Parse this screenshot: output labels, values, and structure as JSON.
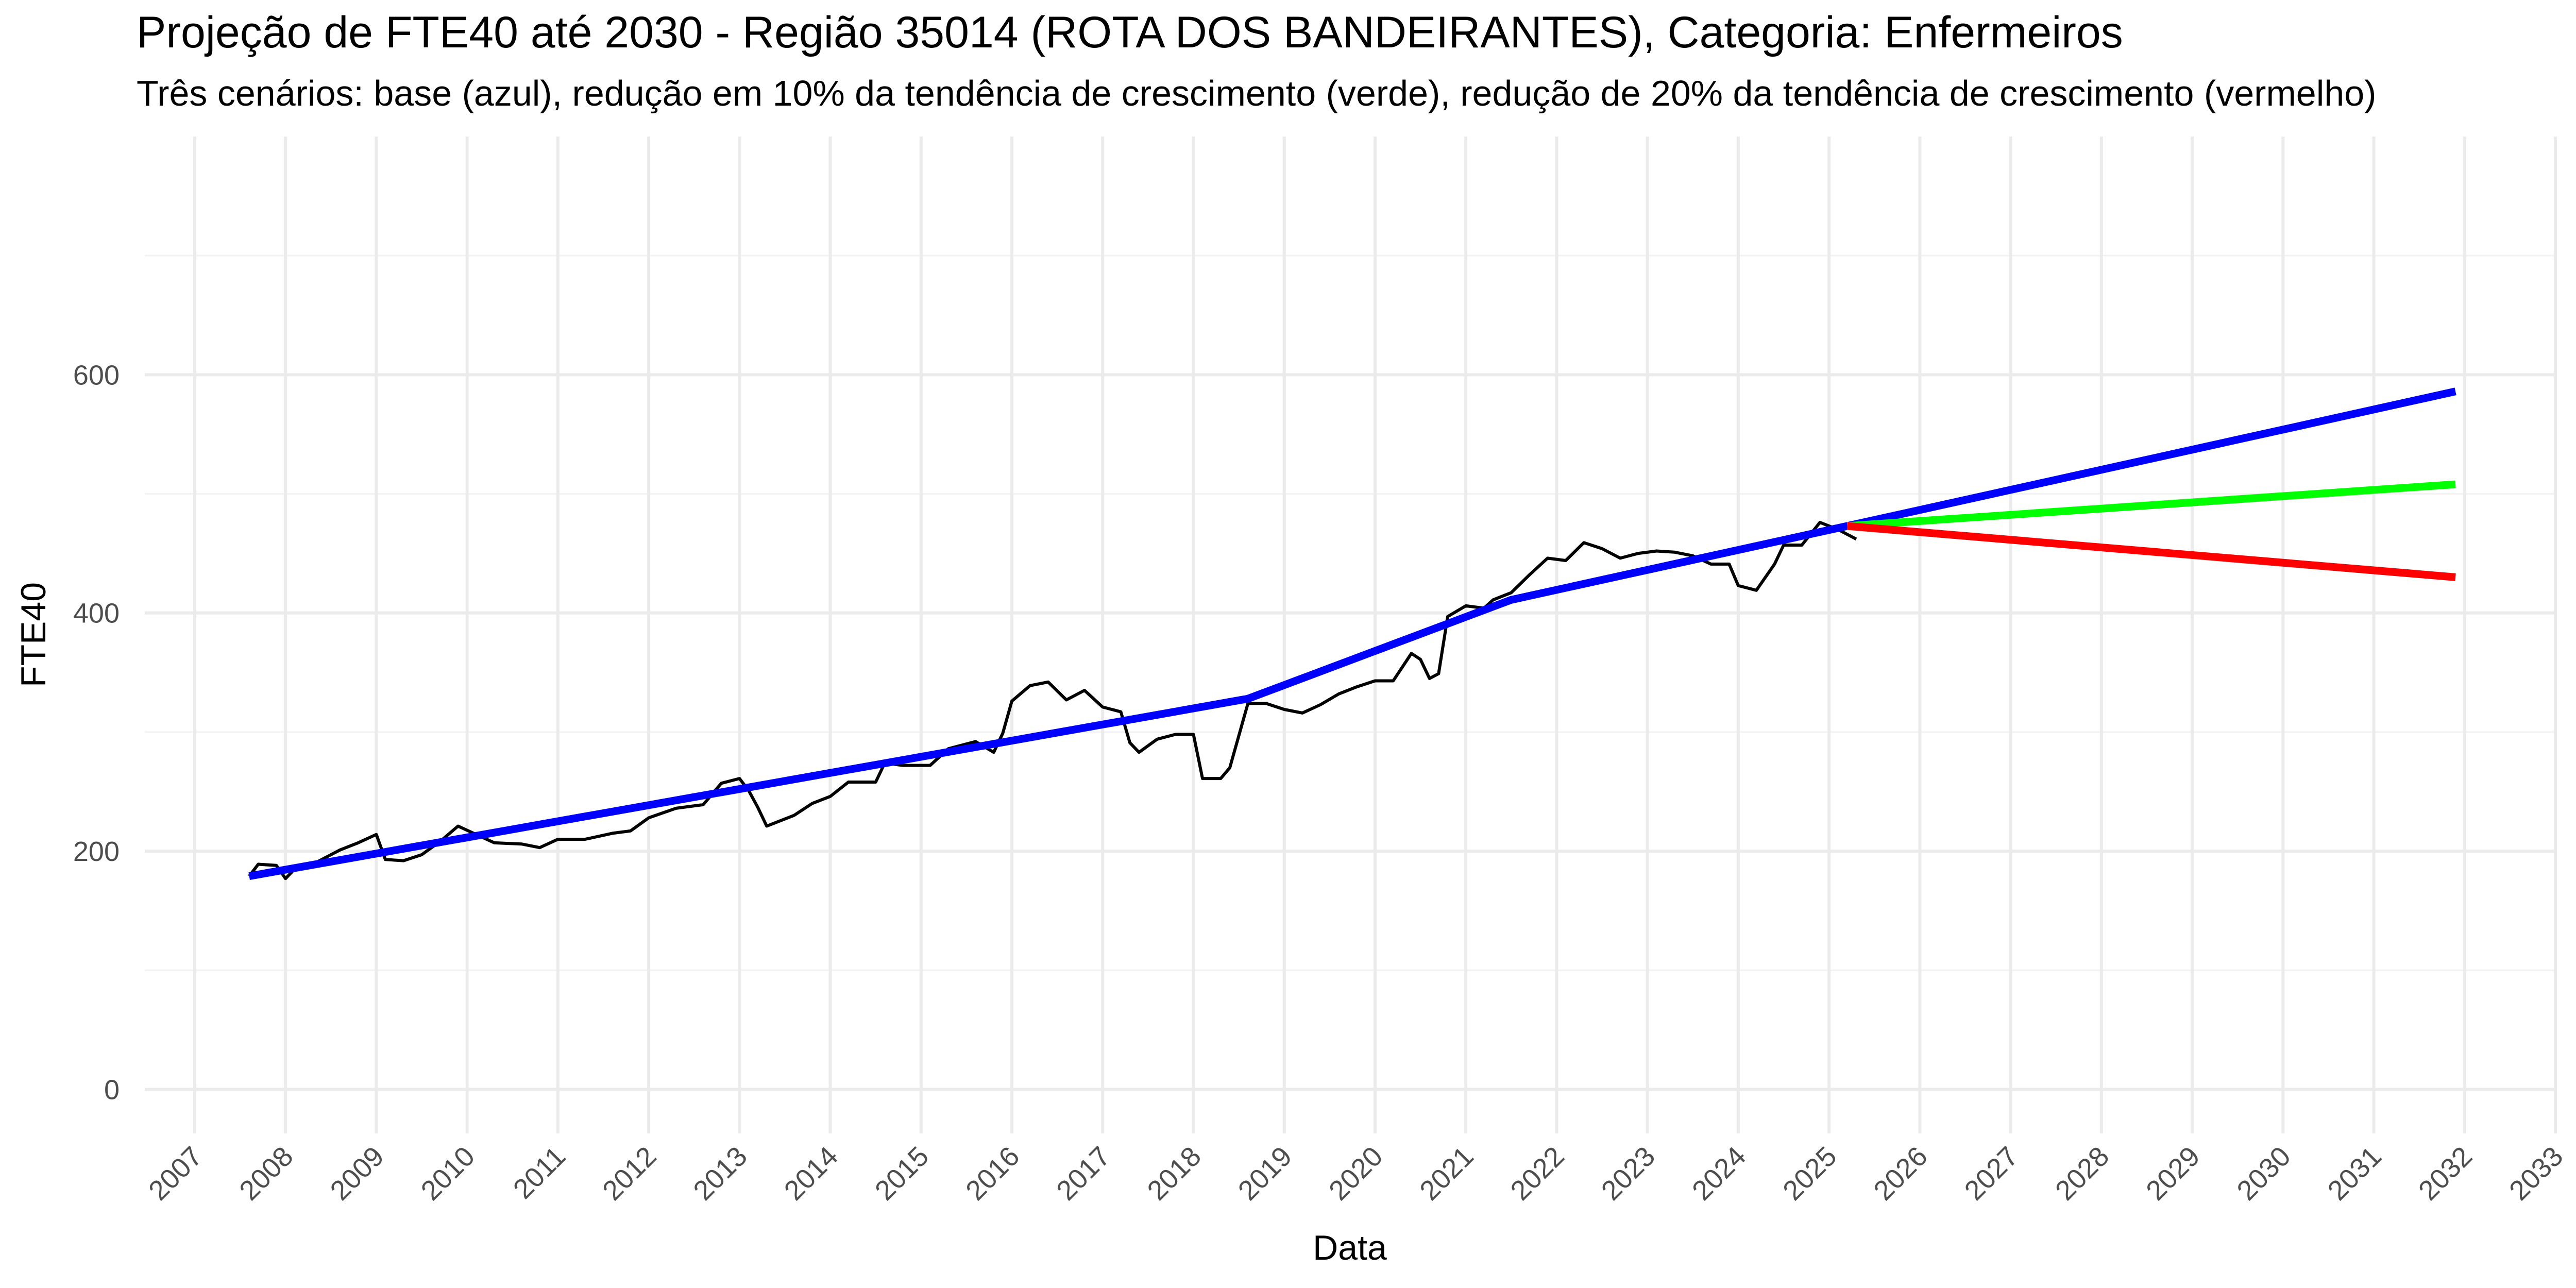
{
  "chart_data": {
    "type": "line",
    "title": "Projeção de FTE40 até 2030 - Região 35014 (ROTA DOS BANDEIRANTES), Categoria: Enfermeiros",
    "subtitle": "Três cenários: base (azul), redução em 10% da tendência de crescimento (verde), redução de 20% da tendência de crescimento (vermelho)",
    "xlabel": "Data",
    "ylabel": "FTE40",
    "xlim": [
      2006.45,
      2033.0
    ],
    "ylim": [
      -37,
      800
    ],
    "xticks": [
      2007,
      2008,
      2009,
      2010,
      2011,
      2012,
      2013,
      2014,
      2015,
      2016,
      2017,
      2018,
      2019,
      2020,
      2021,
      2022,
      2023,
      2024,
      2025,
      2026,
      2027,
      2028,
      2029,
      2030,
      2031,
      2032,
      2033
    ],
    "yticks": [
      0,
      200,
      400,
      600
    ],
    "yminor": [
      100,
      300,
      500,
      700
    ],
    "grid": true,
    "series": [
      {
        "color": "#000000",
        "width": 6,
        "x": [
          2007.6,
          2007.7,
          2007.9,
          2008.0,
          2008.1,
          2008.3,
          2008.5,
          2008.6,
          2008.8,
          2009.0,
          2009.1,
          2009.3,
          2009.5,
          2009.7,
          2009.9,
          2010.1,
          2010.3,
          2010.6,
          2010.8,
          2011.0,
          2011.3,
          2011.6,
          2011.8,
          2012.0,
          2012.3,
          2012.6,
          2012.8,
          2013.0,
          2013.1,
          2013.2,
          2013.3,
          2013.6,
          2013.8,
          2014.0,
          2014.2,
          2014.5,
          2014.6,
          2014.8,
          2015.1,
          2015.3,
          2015.6,
          2015.8,
          2015.9,
          2016.0,
          2016.2,
          2016.4,
          2016.6,
          2016.8,
          2017.0,
          2017.2,
          2017.3,
          2017.4,
          2017.6,
          2017.8,
          2018.0,
          2018.1,
          2018.3,
          2018.4,
          2018.6,
          2018.8,
          2019.0,
          2019.2,
          2019.4,
          2019.6,
          2019.8,
          2020.0,
          2020.2,
          2020.4,
          2020.5,
          2020.6,
          2020.7,
          2020.8,
          2021.0,
          2021.2,
          2021.3,
          2021.5,
          2021.7,
          2021.9,
          2022.1,
          2022.3,
          2022.5,
          2022.7,
          2022.9,
          2023.1,
          2023.3,
          2023.5,
          2023.7,
          2023.9,
          2024.0,
          2024.2,
          2024.4,
          2024.5,
          2024.7,
          2024.9,
          2025.1,
          2025.3
        ],
        "values": [
          179,
          189,
          188,
          177,
          185,
          189,
          197,
          201,
          207,
          214,
          193,
          192,
          197,
          208,
          221,
          214,
          207,
          206,
          203,
          210,
          210,
          215,
          217,
          228,
          236,
          239,
          257,
          261,
          251,
          237,
          221,
          230,
          240,
          246,
          258,
          258,
          274,
          272,
          272,
          286,
          292,
          283,
          299,
          326,
          339,
          342,
          327,
          335,
          321,
          317,
          291,
          283,
          294,
          298,
          298,
          261,
          261,
          270,
          324,
          324,
          319,
          316,
          323,
          332,
          338,
          343,
          343,
          366,
          361,
          345,
          349,
          397,
          406,
          404,
          411,
          417,
          432,
          446,
          444,
          459,
          454,
          446,
          450,
          452,
          451,
          448,
          441,
          441,
          423,
          419,
          441,
          457,
          457,
          476,
          470,
          462
        ]
      },
      {
        "color": "#0000ff",
        "width": 15,
        "x": [
          2007.6,
          2018.6,
          2021.5,
          2025.2,
          2031.9
        ],
        "values": [
          179,
          328,
          411,
          473,
          586
        ]
      },
      {
        "color": "#00ff00",
        "width": 15,
        "x": [
          2025.2,
          2031.9
        ],
        "values": [
          473,
          508
        ]
      },
      {
        "color": "#ff0000",
        "width": 15,
        "x": [
          2025.2,
          2031.9
        ],
        "values": [
          473,
          430
        ]
      }
    ]
  }
}
